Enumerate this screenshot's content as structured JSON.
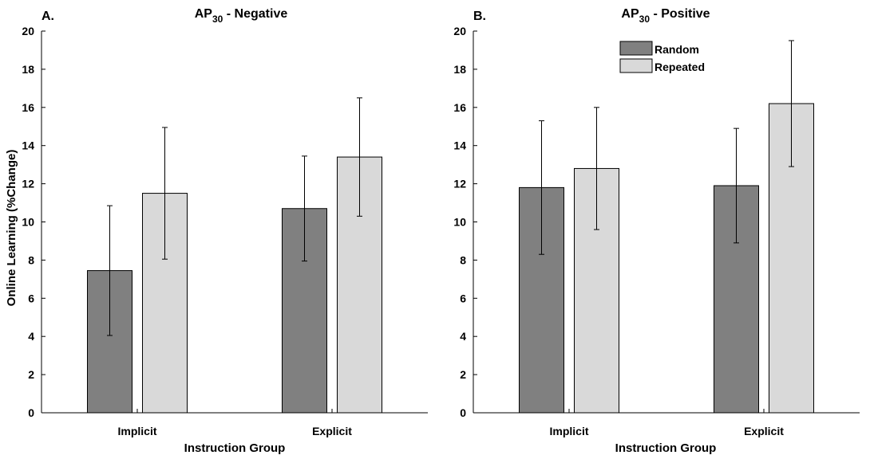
{
  "figure": {
    "ylabel": "Online Learning (%Change)",
    "legend": {
      "position": "top-center",
      "entries": [
        "Random",
        "Repeated"
      ]
    }
  },
  "colors": {
    "random": "#808080",
    "repeated": "#d9d9d9"
  },
  "chart_data": [
    {
      "type": "bar",
      "panel_letter": "A.",
      "title_main": "AP",
      "title_sub": "30",
      "title_rest": " - Negative",
      "xlabel": "Instruction Group",
      "ylabel": "Online Learning (%Change)",
      "categories": [
        "Implicit",
        "Explicit"
      ],
      "ylim": [
        0,
        20
      ],
      "yticks": [
        0,
        2,
        4,
        6,
        8,
        10,
        12,
        14,
        16,
        18,
        20
      ],
      "series": [
        {
          "name": "Random",
          "values": [
            7.45,
            10.7
          ],
          "errors": [
            3.4,
            2.75
          ]
        },
        {
          "name": "Repeated",
          "values": [
            11.5,
            13.4
          ],
          "errors": [
            3.45,
            3.1
          ]
        }
      ],
      "legend": false
    },
    {
      "type": "bar",
      "panel_letter": "B.",
      "title_main": "AP",
      "title_sub": "30",
      "title_rest": " - Positive",
      "xlabel": "Instruction Group",
      "ylabel": "",
      "categories": [
        "Implicit",
        "Explicit"
      ],
      "ylim": [
        0,
        20
      ],
      "yticks": [
        0,
        2,
        4,
        6,
        8,
        10,
        12,
        14,
        16,
        18,
        20
      ],
      "series": [
        {
          "name": "Random",
          "values": [
            11.8,
            11.9
          ],
          "errors": [
            3.5,
            3.0
          ]
        },
        {
          "name": "Repeated",
          "values": [
            12.8,
            16.2
          ],
          "errors": [
            3.2,
            3.3
          ]
        }
      ],
      "legend": true
    }
  ]
}
